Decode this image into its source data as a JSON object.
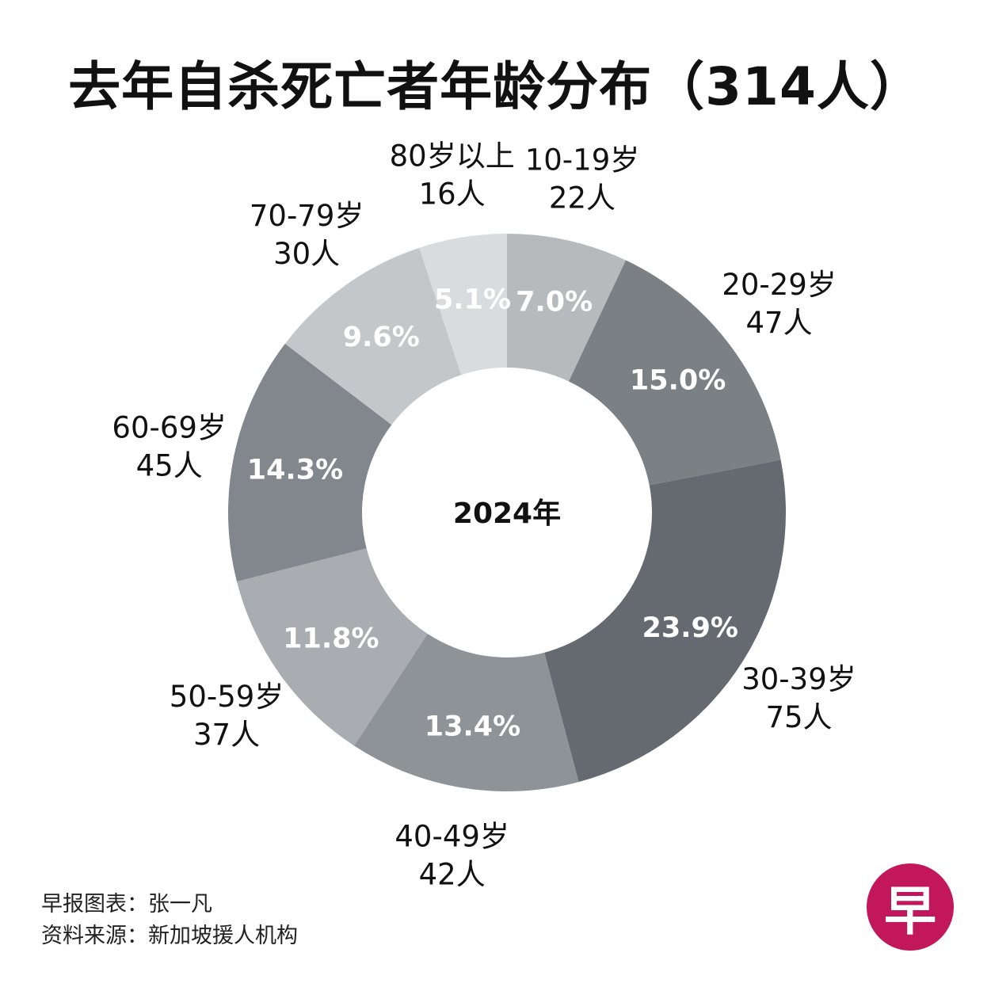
{
  "header": {
    "title": "去年自杀死亡者年龄分布（314人）"
  },
  "chart_data": {
    "type": "pie",
    "variant": "donut",
    "title": "去年自杀死亡者年龄分布（314人）",
    "center_label": "2024年",
    "total": 314,
    "categories": [
      "10-19岁",
      "20-29岁",
      "30-39岁",
      "40-49岁",
      "50-59岁",
      "60-69岁",
      "70-79岁",
      "80岁以上"
    ],
    "values": [
      22,
      47,
      75,
      42,
      37,
      45,
      30,
      16
    ],
    "count_labels": [
      "22人",
      "47人",
      "75人",
      "42人",
      "37人",
      "45人",
      "30人",
      "16人"
    ],
    "percent_labels": [
      "7.0%",
      "15.0%",
      "23.9%",
      "13.4%",
      "11.8%",
      "14.3%",
      "9.6%",
      "5.1%"
    ],
    "colors": [
      "#b6babd",
      "#7b8085",
      "#646a70",
      "#8e9397",
      "#a9adb1",
      "#81878c",
      "#c4c7ca",
      "#d9dcde"
    ],
    "start": "12 o'clock",
    "direction": "clockwise"
  },
  "footer": {
    "credit": "早报图表：张一凡",
    "source": "资料来源：新加坡援人机构"
  },
  "logo": {
    "text": "早",
    "color": "#c2185b"
  }
}
